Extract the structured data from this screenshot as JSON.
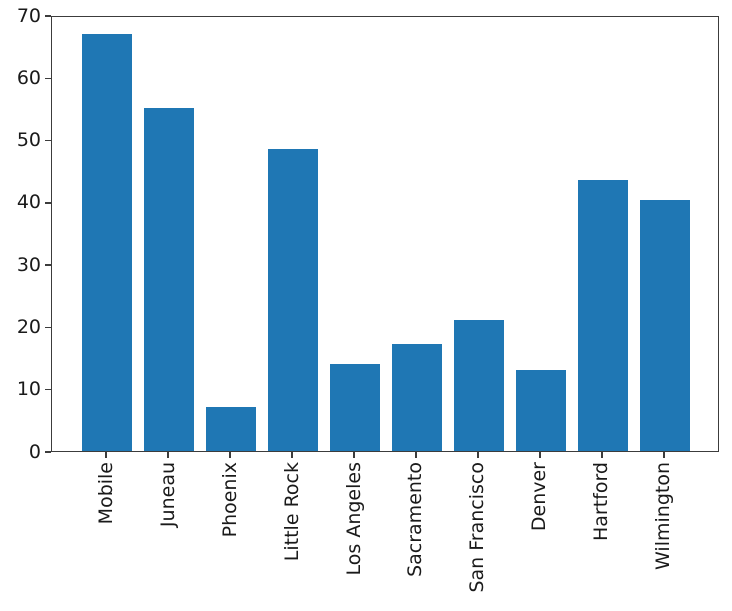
{
  "chart_data": {
    "type": "bar",
    "title": "",
    "xlabel": "",
    "ylabel": "",
    "categories": [
      "Mobile",
      "Juneau",
      "Phoenix",
      "Little Rock",
      "Los Angeles",
      "Sacramento",
      "San Francisco",
      "Denver",
      "Hartford",
      "Wilmington"
    ],
    "values": [
      67,
      55,
      7,
      48.5,
      14,
      17.2,
      21,
      13,
      43.5,
      40.3
    ],
    "ylim": [
      0,
      70
    ],
    "yticks": [
      0,
      10,
      20,
      30,
      40,
      50,
      60,
      70
    ],
    "x_tick_rotation": 90,
    "grid": false,
    "legend": null,
    "bar_color": "#1f77b4",
    "spine_color": "#3c3c3c",
    "text_color": "#1a1a1a",
    "background_color": "#ffffff"
  }
}
